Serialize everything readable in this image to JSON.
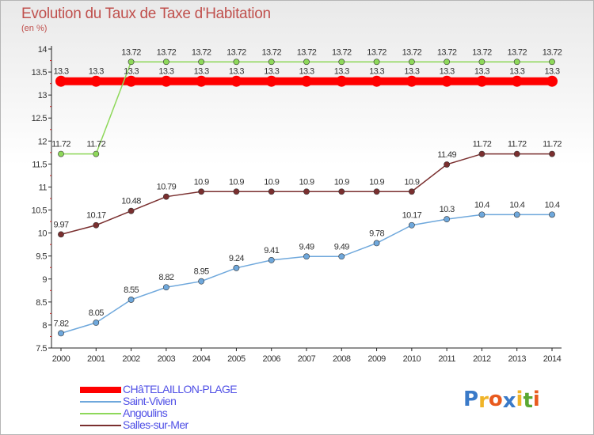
{
  "header": {
    "title": "Evolution du Taux de Taxe d'Habitation",
    "subtitle": "(en %)"
  },
  "colors": {
    "CHâTELAILLON-PLAGE": "#ff0000",
    "Saint-Vivien": "#6fa8dc",
    "Angoulins": "#8ed85a",
    "Salles-sur-Mer": "#7a2f2f"
  },
  "logo": {
    "letters": [
      "P",
      "r",
      "o",
      "x",
      "i",
      "t",
      "i"
    ],
    "colors": [
      "#3a7ac8",
      "#f0b428",
      "#e85a1e",
      "#3a7ac8",
      "#f0b428",
      "#5aa832",
      "#e85a1e"
    ]
  },
  "chart_data": {
    "type": "line",
    "title": "Evolution du Taux de Taxe d'Habitation",
    "subtitle": "(en %)",
    "xlabel": "",
    "ylabel": "",
    "x": [
      "2000",
      "2001",
      "2002",
      "2003",
      "2004",
      "2005",
      "2006",
      "2007",
      "2008",
      "2009",
      "2010",
      "2011",
      "2012",
      "2013",
      "2014"
    ],
    "ylim": [
      7.5,
      14
    ],
    "yticks": [
      "7.5",
      "8",
      "8.5",
      "9",
      "9.5",
      "10",
      "10.5",
      "11",
      "11.5",
      "12",
      "12.5",
      "13",
      "13.5",
      "14"
    ],
    "grid": false,
    "legend": "bottom-left",
    "series": [
      {
        "name": "CHâTELAILLON-PLAGE",
        "color": "#ff0000",
        "values": [
          13.3,
          13.3,
          13.3,
          13.3,
          13.3,
          13.3,
          13.3,
          13.3,
          13.3,
          13.3,
          13.3,
          13.3,
          13.3,
          13.3,
          13.3
        ],
        "labels": [
          "13.3",
          "13.3",
          "13.3",
          "13.3",
          "13.3",
          "13.3",
          "13.3",
          "13.3",
          "13.3",
          "13.3",
          "13.3",
          "13.3",
          "13.3",
          "13.3",
          "13.3"
        ]
      },
      {
        "name": "Saint-Vivien",
        "color": "#6fa8dc",
        "values": [
          7.82,
          8.05,
          8.55,
          8.82,
          8.95,
          9.24,
          9.41,
          9.49,
          9.49,
          9.78,
          10.17,
          10.3,
          10.4,
          10.4,
          10.4
        ],
        "labels": [
          "7.82",
          "8.05",
          "8.55",
          "8.82",
          "8.95",
          "9.24",
          "9.41",
          "9.49",
          "9.49",
          "9.78",
          "10.17",
          "10.3",
          "10.4",
          "10.4",
          "10.4"
        ]
      },
      {
        "name": "Angoulins",
        "color": "#8ed85a",
        "values": [
          11.72,
          11.72,
          13.72,
          13.72,
          13.72,
          13.72,
          13.72,
          13.72,
          13.72,
          13.72,
          13.72,
          13.72,
          13.72,
          13.72,
          13.72
        ],
        "labels": [
          "11.72",
          "11.72",
          "13.72",
          "13.72",
          "13.72",
          "13.72",
          "13.72",
          "13.72",
          "13.72",
          "13.72",
          "13.72",
          "13.72",
          "13.72",
          "13.72",
          "13.72"
        ]
      },
      {
        "name": "Salles-sur-Mer",
        "color": "#7a2f2f",
        "values": [
          9.97,
          10.17,
          10.48,
          10.79,
          10.9,
          10.9,
          10.9,
          10.9,
          10.9,
          10.9,
          10.9,
          11.49,
          11.72,
          11.72,
          11.72
        ],
        "labels": [
          "9.97",
          "10.17",
          "10.48",
          "10.79",
          "10.9",
          "10.9",
          "10.9",
          "10.9",
          "10.9",
          "10.9",
          "10.9",
          "11.49",
          "11.72",
          "11.72",
          "11.72"
        ]
      }
    ]
  }
}
